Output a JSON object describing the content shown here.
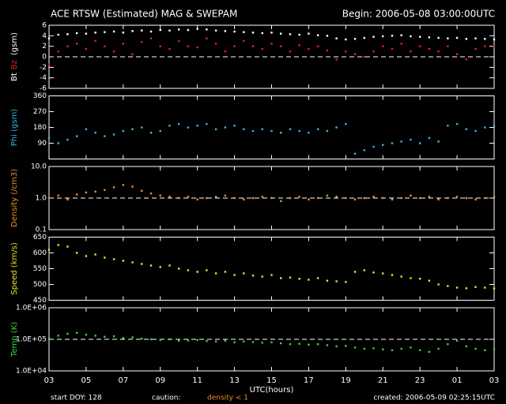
{
  "header": {
    "title": "ACE RTSW (Estimated) MAG & SWEPAM",
    "begin": "Begin: 2006-05-08 03:00:00UTC"
  },
  "footer": {
    "start": "start DOY: 128",
    "caution": "caution:",
    "caution_note": "density < 1",
    "created": "created: 2006-05-09 02:25:15UTC"
  },
  "chart_data": {
    "type": "multi-panel",
    "xlabel": "UTC(hours)",
    "xlim": [
      3,
      27
    ],
    "xticks": [
      {
        "value": 3,
        "label": "03"
      },
      {
        "value": 5,
        "label": "05"
      },
      {
        "value": 7,
        "label": "07"
      },
      {
        "value": 9,
        "label": "09"
      },
      11,
      13,
      15,
      17,
      19,
      21,
      23,
      {
        "value": 25,
        "label": "01"
      },
      {
        "value": 27,
        "label": "03"
      }
    ],
    "x": [
      3,
      3.5,
      4,
      4.5,
      5,
      5.5,
      6,
      6.5,
      7,
      7.5,
      8,
      8.5,
      9,
      9.5,
      10,
      10.5,
      11,
      11.5,
      12,
      12.5,
      13,
      13.5,
      14,
      14.5,
      15,
      15.5,
      16,
      16.5,
      17,
      17.5,
      18,
      18.5,
      19,
      19.5,
      20,
      20.5,
      21,
      21.5,
      22,
      22.5,
      23,
      23.5,
      24,
      24.5,
      25,
      25.5,
      26,
      26.5,
      27
    ],
    "panels": [
      {
        "type": "scatter",
        "ylabel": "(gsm)",
        "ylim": [
          -6,
          6
        ],
        "yticks": [
          -6,
          -4,
          -2,
          0,
          2,
          4,
          6
        ],
        "hline": 0,
        "log": false,
        "series": [
          {
            "name": "Bt",
            "color": "#ffffff",
            "values": [
              3.5,
              4.2,
              4.3,
              4.5,
              4.4,
              4.6,
              4.7,
              4.8,
              4.6,
              4.9,
              5.0,
              4.8,
              5.1,
              5.0,
              5.2,
              5.1,
              5.3,
              5.2,
              5.0,
              4.9,
              4.8,
              4.7,
              4.6,
              4.5,
              4.6,
              4.4,
              4.3,
              4.2,
              4.4,
              4.1,
              4.0,
              3.5,
              3.3,
              3.4,
              3.6,
              3.8,
              3.9,
              4.0,
              4.1,
              3.9,
              3.8,
              3.7,
              3.6,
              3.5,
              3.6,
              3.4,
              3.5,
              3.4,
              3.3
            ]
          },
          {
            "name": "Bz",
            "color": "#e02020",
            "values": [
              -1.5,
              1.0,
              2.0,
              2.5,
              1.5,
              3.0,
              2.0,
              1.0,
              2.5,
              0.5,
              2.8,
              3.5,
              2.0,
              1.5,
              3.0,
              2.0,
              1.8,
              3.5,
              2.5,
              1.0,
              2.0,
              3.0,
              2.0,
              1.5,
              2.5,
              2.0,
              1.0,
              2.2,
              1.5,
              2.0,
              1.2,
              -0.5,
              1.0,
              0.5,
              0.0,
              1.0,
              2.0,
              1.5,
              2.5,
              1.0,
              2.0,
              1.5,
              1.0,
              2.0,
              0.5,
              -0.5,
              1.5,
              2.0,
              2.0
            ]
          }
        ]
      },
      {
        "type": "scatter",
        "ylabel": "Phi (gsm)",
        "ylabel_color": "#3cb4e6",
        "ylim": [
          0,
          360
        ],
        "yticks": [
          90,
          180,
          270,
          360
        ],
        "log": false,
        "series": [
          {
            "color": "#3cb4e6",
            "values": [
              120,
              90,
              110,
              130,
              170,
              150,
              130,
              140,
              160,
              170,
              180,
              150,
              160,
              190,
              200,
              180,
              190,
              200,
              170,
              180,
              190,
              170,
              160,
              170,
              160,
              150,
              170,
              160,
              150,
              170,
              160,
              180,
              200,
              30,
              50,
              70,
              80,
              90,
              100,
              110,
              90,
              120,
              100,
              190,
              200,
              170,
              160,
              180,
              190
            ]
          }
        ]
      },
      {
        "type": "scatter",
        "ylabel": "Density (/cm3)",
        "ylabel_color": "#f08c28",
        "ylim": [
          0.1,
          10
        ],
        "yticks": [
          0.1,
          {
            "value": 1,
            "label": "1.0"
          },
          {
            "value": 10,
            "label": "10.0"
          }
        ],
        "hline": 1,
        "log": true,
        "series": [
          {
            "color": "#f08c28",
            "values": [
              1.0,
              1.2,
              0.9,
              1.3,
              1.5,
              1.6,
              1.8,
              2.2,
              2.6,
              2.3,
              1.7,
              1.4,
              1.2,
              1.1,
              1.0,
              1.1,
              0.9,
              1.0,
              1.1,
              1.2,
              1.0,
              0.9,
              1.0,
              1.1,
              1.0,
              0.8,
              1.0,
              1.1,
              0.9,
              1.0,
              1.2,
              1.1,
              1.0,
              0.9,
              1.0,
              1.1,
              1.0,
              0.9,
              1.0,
              1.2,
              1.0,
              1.1,
              0.9,
              1.0,
              1.1,
              1.0,
              0.9,
              1.0,
              1.1
            ]
          }
        ]
      },
      {
        "type": "scatter",
        "ylabel": "Speed (km/s)",
        "ylabel_color": "#e6e632",
        "ylim": [
          450,
          650
        ],
        "yticks": [
          450,
          500,
          550,
          600,
          650
        ],
        "log": false,
        "series": [
          {
            "color": "#e6e632",
            "values": [
              610,
              625,
              620,
              600,
              590,
              595,
              585,
              580,
              575,
              570,
              565,
              560,
              555,
              560,
              550,
              545,
              540,
              545,
              535,
              540,
              530,
              535,
              528,
              525,
              530,
              520,
              522,
              518,
              515,
              520,
              512,
              510,
              508,
              540,
              545,
              538,
              535,
              530,
              525,
              520,
              518,
              512,
              500,
              495,
              490,
              488,
              492,
              490,
              487
            ]
          }
        ]
      },
      {
        "type": "scatter",
        "ylabel": "Temp (K)",
        "ylabel_color": "#3cd23c",
        "ylim": [
          10000,
          1000000
        ],
        "yticks": [
          {
            "value": 10000,
            "label": "1.0E+04"
          },
          {
            "value": 100000,
            "label": "1.0E+05"
          },
          {
            "value": 1000000,
            "label": "1.0E+06"
          }
        ],
        "hline": 100000,
        "log": true,
        "series": [
          {
            "color": "#3cd23c",
            "values": [
              110000,
              130000,
              150000,
              160000,
              140000,
              130000,
              120000,
              125000,
              110000,
              115000,
              105000,
              100000,
              95000,
              100000,
              90000,
              92000,
              95000,
              88000,
              85000,
              90000,
              80000,
              85000,
              82000,
              78000,
              80000,
              75000,
              70000,
              72000,
              68000,
              70000,
              65000,
              60000,
              62000,
              55000,
              50000,
              52000,
              48000,
              45000,
              50000,
              55000,
              45000,
              40000,
              50000,
              70000,
              90000,
              60000,
              50000,
              45000,
              50000
            ]
          }
        ]
      }
    ]
  }
}
